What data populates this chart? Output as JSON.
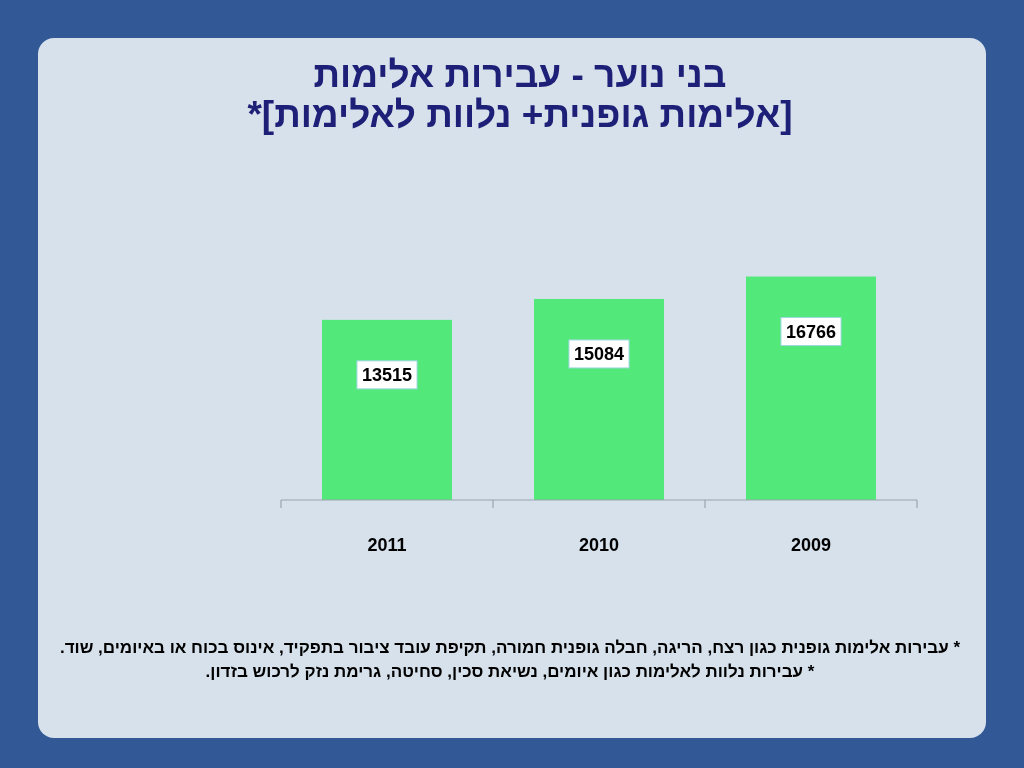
{
  "chart_data": {
    "type": "bar",
    "title": "בני נוער - עבירות אלימות",
    "subtitle": "[אלימות גופנית+ נלוות לאלימות]*",
    "categories": [
      "2011",
      "2010",
      "2009"
    ],
    "values": [
      13515,
      15084,
      16766
    ],
    "color": "#52e87a",
    "data_labels": true,
    "tick_labels": "x",
    "annotations": [
      "* עבירות אלימות גופנית כגון רצח, הריגה, חבלה גופנית חמורה, תקיפת עובד ציבור בתפקיד, אינוס בכוח או באיומים, שוד.",
      "* עבירות נלוות לאלימות כגון איומים, נשיאת סכין, סחיטה, גרימת נזק לרכוש בזדון."
    ]
  }
}
